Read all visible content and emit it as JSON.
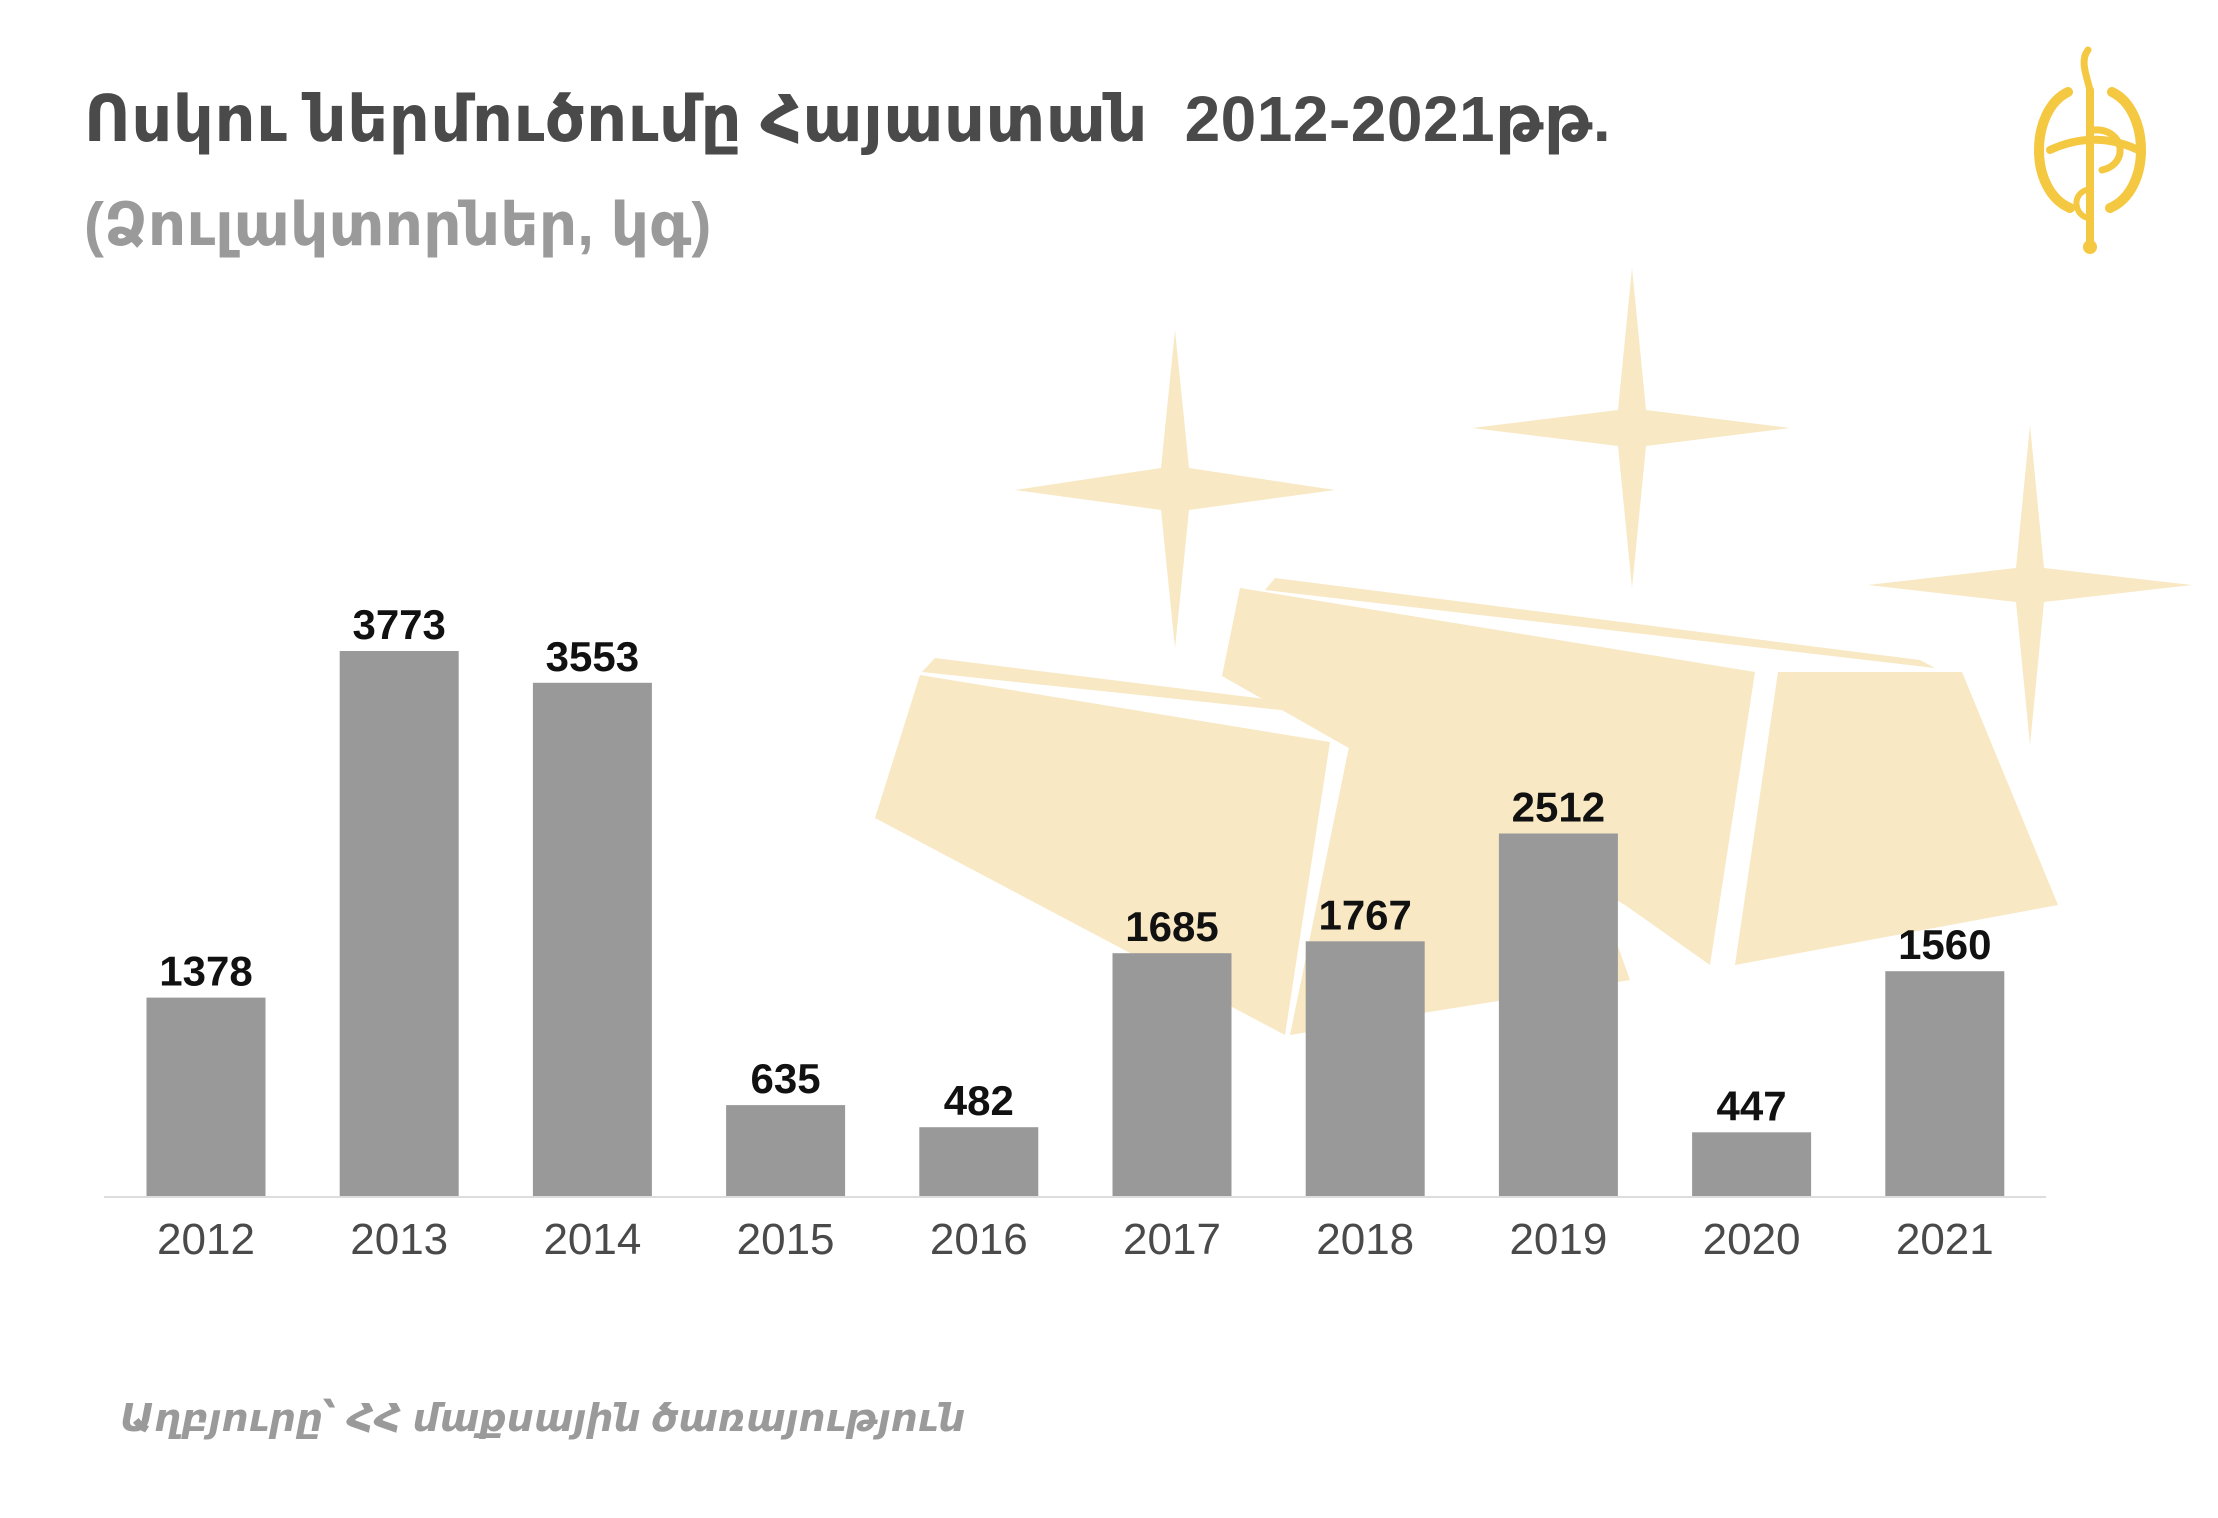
{
  "header": {
    "title": "Ոսկու ներմուծումը Հայաստան  2012-2021թթ.",
    "subtitle": "(Ձուլակտորներ, կգ)"
  },
  "footer": {
    "source": "Աղբյուրը՝ ՀՀ մաքսային ծառայություն"
  },
  "colors": {
    "bar": "#999999",
    "decoration": "#f8e8c4",
    "logo": "#f5c842",
    "title": "#4a4a4a",
    "subtitle": "#9a9a9a",
    "axis": "#dddddd"
  },
  "icons": {
    "logo": "logo-icon",
    "background": "gold-bars-icon"
  },
  "chart_data": {
    "type": "bar",
    "title": "Ոսկու ներմուծումը Հայաստան  2012-2021թթ.",
    "subtitle": "(Ձուլակտորներ, կգ)",
    "categories": [
      "2012",
      "2013",
      "2014",
      "2015",
      "2016",
      "2017",
      "2018",
      "2019",
      "2020",
      "2021"
    ],
    "values": [
      1378,
      3773,
      3553,
      635,
      482,
      1685,
      1767,
      2512,
      447,
      1560
    ],
    "xlabel": "",
    "ylabel": "",
    "ylim": [
      0,
      3773
    ],
    "grid": false,
    "legend": "none",
    "data_labels": true
  }
}
